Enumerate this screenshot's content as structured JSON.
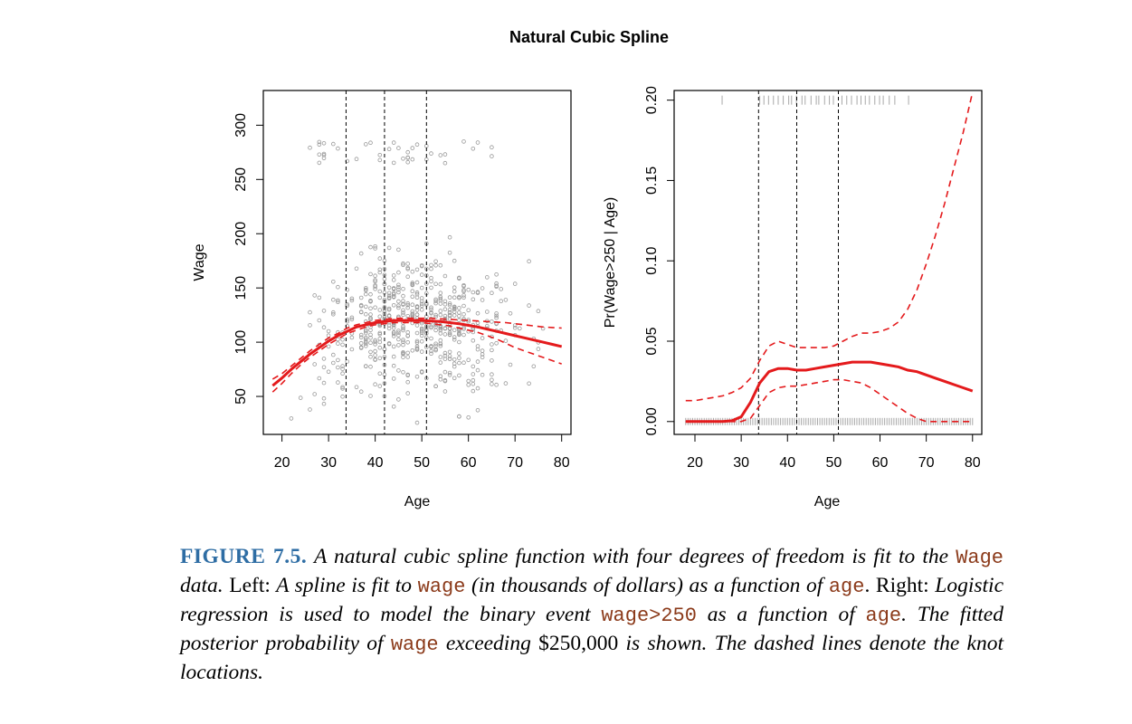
{
  "figure": {
    "title": "Natural Cubic Spline"
  },
  "colors": {
    "fit": "#e41a1c",
    "points": "#9a9a9a",
    "rug": "#a8a8a8",
    "caption_label": "#2e6da4",
    "code": "#8b3a1a"
  },
  "chart_data": [
    {
      "type": "scatter",
      "panel": "left",
      "xlabel": "Age",
      "ylabel": "Wage",
      "xlim": [
        16,
        82
      ],
      "ylim": [
        15,
        332
      ],
      "x_ticks": [
        20,
        30,
        40,
        50,
        60,
        70,
        80
      ],
      "y_ticks": [
        50,
        100,
        150,
        200,
        250,
        300
      ],
      "knots": [
        33.75,
        42,
        51
      ],
      "series": [
        {
          "kind": "fit",
          "style": "solid",
          "x": [
            18,
            20,
            22,
            24,
            26,
            28,
            30,
            32,
            34,
            36,
            38,
            40,
            42,
            44,
            46,
            48,
            50,
            52,
            54,
            56,
            58,
            60,
            62,
            64,
            66,
            68,
            70,
            72,
            74,
            76,
            78,
            80
          ],
          "y": [
            60,
            67,
            75,
            82,
            89,
            95,
            101,
            106,
            110,
            114,
            116,
            118,
            119,
            120,
            120,
            120,
            120,
            119.5,
            119,
            118,
            117,
            115.5,
            114,
            112,
            110,
            108,
            106,
            104,
            102,
            100,
            98,
            96
          ]
        },
        {
          "kind": "ci-upper",
          "style": "dashed",
          "x": [
            18,
            20,
            22,
            24,
            26,
            28,
            30,
            32,
            34,
            36,
            38,
            40,
            42,
            44,
            46,
            48,
            50,
            52,
            54,
            56,
            58,
            60,
            62,
            64,
            66,
            68,
            70,
            72,
            74,
            76,
            78,
            80
          ],
          "y": [
            66,
            71,
            78,
            85,
            92,
            98,
            104,
            108,
            113,
            116,
            118,
            120,
            121,
            122,
            122,
            122,
            122,
            122,
            121.5,
            121,
            120.5,
            120,
            119.5,
            119,
            118.5,
            118,
            117,
            116,
            115,
            114,
            113.5,
            113
          ]
        },
        {
          "kind": "ci-lower",
          "style": "dashed",
          "x": [
            18,
            20,
            22,
            24,
            26,
            28,
            30,
            32,
            34,
            36,
            38,
            40,
            42,
            44,
            46,
            48,
            50,
            52,
            54,
            56,
            58,
            60,
            62,
            64,
            66,
            68,
            70,
            72,
            74,
            76,
            78,
            80
          ],
          "y": [
            54,
            62,
            71,
            79,
            86,
            92,
            98,
            103,
            108,
            111,
            114,
            116,
            117,
            118,
            118,
            118,
            118,
            117,
            116,
            115,
            113,
            111,
            109,
            106,
            103,
            99,
            95,
            92,
            89,
            86,
            83,
            80
          ]
        },
        {
          "kind": "observations",
          "name": "",
          "description_count": 600,
          "high_earner_band": [
            265,
            285
          ],
          "note": ""
        }
      ]
    },
    {
      "type": "line",
      "panel": "right",
      "xlabel": "Age",
      "ylabel": "Pr(Wage>250 | Age)",
      "xlim": [
        15.5,
        82
      ],
      "ylim": [
        -0.008,
        0.206
      ],
      "x_ticks": [
        20,
        30,
        40,
        50,
        60,
        70,
        80
      ],
      "y_ticks": [
        0.0,
        0.05,
        0.1,
        0.15,
        0.2
      ],
      "knots": [
        33.75,
        42,
        51
      ],
      "series": [
        {
          "kind": "fit",
          "style": "solid",
          "x": [
            18,
            20,
            22,
            24,
            26,
            28,
            30,
            32,
            34,
            36,
            38,
            40,
            42,
            44,
            46,
            48,
            50,
            52,
            54,
            56,
            58,
            60,
            62,
            64,
            66,
            68,
            70,
            72,
            74,
            76,
            78,
            80
          ],
          "y": [
            0.0,
            0.0,
            0.0,
            0.0,
            0.0,
            0.0005,
            0.003,
            0.012,
            0.024,
            0.031,
            0.033,
            0.033,
            0.032,
            0.032,
            0.033,
            0.034,
            0.035,
            0.036,
            0.037,
            0.037,
            0.037,
            0.036,
            0.035,
            0.034,
            0.032,
            0.031,
            0.029,
            0.027,
            0.025,
            0.023,
            0.021,
            0.019
          ]
        },
        {
          "kind": "ci-upper",
          "style": "dashed",
          "x": [
            18,
            20,
            22,
            24,
            26,
            28,
            30,
            32,
            34,
            36,
            38,
            40,
            42,
            44,
            46,
            48,
            50,
            52,
            54,
            56,
            58,
            60,
            62,
            64,
            66,
            68,
            70,
            72,
            74,
            76,
            78,
            80
          ],
          "y": [
            0.013,
            0.013,
            0.014,
            0.015,
            0.016,
            0.018,
            0.021,
            0.027,
            0.038,
            0.047,
            0.05,
            0.048,
            0.046,
            0.046,
            0.046,
            0.046,
            0.047,
            0.05,
            0.053,
            0.055,
            0.055,
            0.056,
            0.058,
            0.062,
            0.07,
            0.082,
            0.098,
            0.116,
            0.136,
            0.158,
            0.18,
            0.205
          ]
        },
        {
          "kind": "ci-lower",
          "style": "dashed",
          "x": [
            18,
            20,
            22,
            24,
            26,
            28,
            30,
            32,
            34,
            36,
            38,
            40,
            42,
            44,
            46,
            48,
            50,
            52,
            54,
            56,
            58,
            60,
            62,
            64,
            66,
            68,
            70,
            72,
            74,
            76,
            78,
            80
          ],
          "y": [
            0.0,
            0.0,
            0.0,
            0.0,
            0.0,
            0.0,
            0.0,
            0.002,
            0.01,
            0.018,
            0.021,
            0.022,
            0.022,
            0.023,
            0.024,
            0.025,
            0.026,
            0.026,
            0.025,
            0.024,
            0.021,
            0.017,
            0.013,
            0.009,
            0.005,
            0.002,
            0.0,
            0.0,
            0.0,
            0.0,
            0.0,
            0.0
          ]
        },
        {
          "kind": "rug-top",
          "note": "",
          "x": [
            26,
            34,
            35,
            36,
            37,
            38,
            39,
            40,
            41,
            42,
            43,
            44,
            45,
            46,
            47,
            48,
            49,
            50,
            52,
            53,
            54,
            55,
            56,
            57,
            58,
            59,
            60,
            61,
            62,
            63,
            66
          ]
        },
        {
          "kind": "rug-bottom",
          "note": "",
          "x_range": [
            18,
            80
          ]
        }
      ]
    }
  ],
  "caption": {
    "label": "FIGURE 7.5.",
    "p1": " A natural cubic spline function with four degrees of freedom is fit to the ",
    "c1": "Wage",
    "p2": " data.",
    "left_word": " Left:",
    "p3": " A spline is fit to ",
    "c2": "wage",
    "p4": " (in thousands of dollars) as a function of ",
    "c3": "age",
    "p5": ".",
    "right_word": " Right:",
    "p6": " Logistic regression is used to model the binary event ",
    "c4": "wage>250",
    "p7": " as a function of ",
    "c5": "age",
    "p8": ". The fitted posterior probability of ",
    "c6": "wage",
    "p9": " exceeding",
    "amount": " $250,000",
    "p10": " is shown. The dashed lines denote the knot locations."
  }
}
